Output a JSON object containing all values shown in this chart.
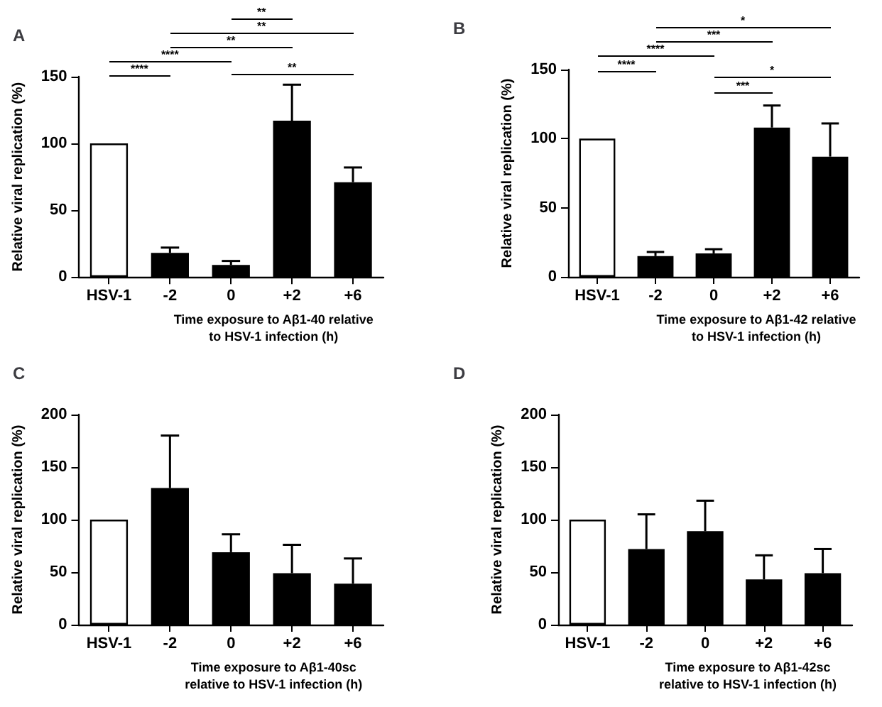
{
  "chart_data": [
    {
      "type": "bar",
      "title": "A",
      "xlabel": "Time exposure to Aβ1-40 relative\nto HSV-1 infection (h)",
      "ylabel": "Relative viral replication (%)",
      "categories": [
        "HSV-1",
        "-2",
        "0",
        "+2",
        "+6"
      ],
      "values": [
        100,
        18,
        9,
        117,
        71
      ],
      "colors": [
        "#ffffff",
        "#000000",
        "#000000",
        "#000000",
        "#000000"
      ],
      "errors": [
        null,
        [
          18,
          22
        ],
        [
          9,
          12
        ],
        [
          117,
          144
        ],
        [
          71,
          82
        ]
      ],
      "ylim": [
        0,
        150
      ],
      "yticks": [
        0,
        50,
        100,
        150
      ],
      "grid": false,
      "annotations": [
        "**",
        "**",
        "**",
        "****",
        "****",
        "**"
      ]
    },
    {
      "type": "bar",
      "title": "B",
      "xlabel": "Time exposure to Aβ1-42 relative\nto HSV-1 infection (h)",
      "ylabel": "Relative viral replication (%)",
      "categories": [
        "HSV-1",
        "-2",
        "0",
        "+2",
        "+6"
      ],
      "values": [
        100,
        15,
        17,
        108,
        87
      ],
      "colors": [
        "#ffffff",
        "#000000",
        "#000000",
        "#000000",
        "#000000"
      ],
      "errors": [
        null,
        [
          15,
          18
        ],
        [
          17,
          20
        ],
        [
          108,
          124
        ],
        [
          87,
          111
        ]
      ],
      "ylim": [
        0,
        150
      ],
      "yticks": [
        0,
        50,
        100,
        150
      ],
      "grid": false,
      "annotations": [
        "*",
        "***",
        "****",
        "****",
        "*",
        "***"
      ]
    },
    {
      "type": "bar",
      "title": "C",
      "xlabel": "Time exposure to Aβ1-40sc\nrelative to HSV-1 infection (h)",
      "ylabel": "Relative viral replication (%)",
      "categories": [
        "HSV-1",
        "-2",
        "0",
        "+2",
        "+6"
      ],
      "values": [
        100,
        130,
        69,
        49,
        39
      ],
      "colors": [
        "#ffffff",
        "#000000",
        "#000000",
        "#000000",
        "#000000"
      ],
      "errors": [
        null,
        [
          130,
          180
        ],
        [
          69,
          86
        ],
        [
          49,
          76
        ],
        [
          39,
          63
        ]
      ],
      "ylim": [
        0,
        200
      ],
      "yticks": [
        0,
        50,
        100,
        150,
        200
      ],
      "grid": false
    },
    {
      "type": "bar",
      "title": "D",
      "xlabel": "Time exposure to Aβ1-42sc\nrelative to HSV-1 infection (h)",
      "ylabel": "Relative viral replication (%)",
      "categories": [
        "HSV-1",
        "-2",
        "0",
        "+2",
        "+6"
      ],
      "values": [
        100,
        72,
        89,
        43,
        49
      ],
      "colors": [
        "#ffffff",
        "#000000",
        "#000000",
        "#000000",
        "#000000"
      ],
      "errors": [
        null,
        [
          72,
          105
        ],
        [
          89,
          118
        ],
        [
          43,
          66
        ],
        [
          49,
          72
        ]
      ],
      "ylim": [
        0,
        200
      ],
      "yticks": [
        0,
        50,
        100,
        150,
        200
      ],
      "grid": false
    }
  ]
}
